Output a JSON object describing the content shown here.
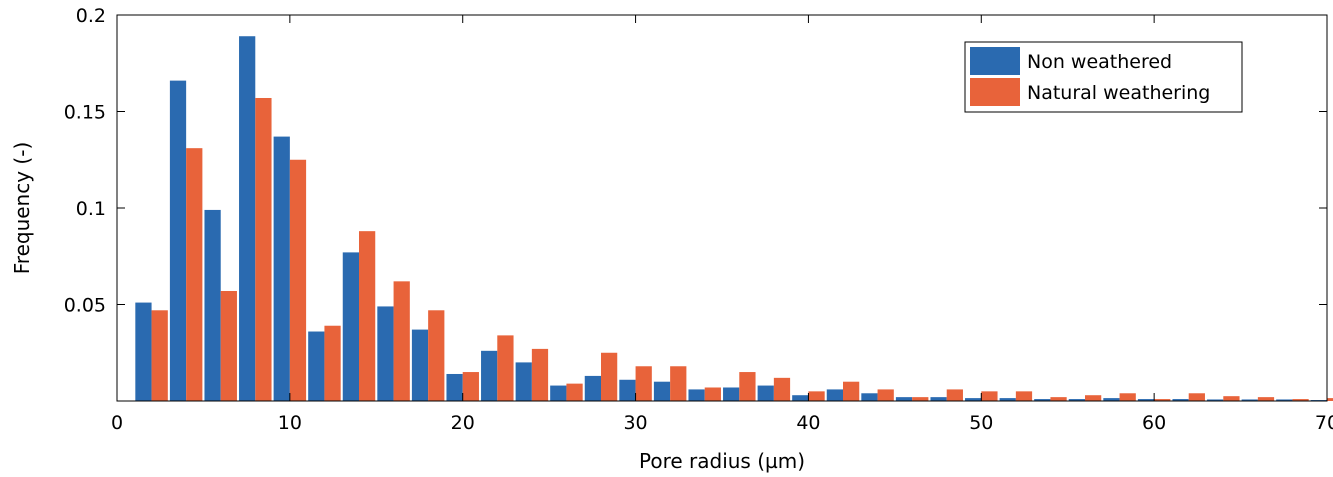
{
  "chart_data": {
    "type": "bar",
    "title": "",
    "xlabel": "Pore radius (µm)",
    "ylabel": "Frequency (-)",
    "xlim": [
      0,
      70
    ],
    "ylim": [
      0,
      0.2
    ],
    "xticks": [
      0,
      10,
      20,
      30,
      40,
      50,
      60,
      70
    ],
    "xtick_labels": [
      "0",
      "10",
      "20",
      "30",
      "40",
      "50",
      "60",
      "70"
    ],
    "yticks": [
      0.05,
      0.1,
      0.15,
      0.2
    ],
    "ytick_labels": [
      "0.05",
      "0.1",
      "0.15",
      "0.2"
    ],
    "grid": false,
    "legend_position": "top-right",
    "bin_centers": [
      2,
      4,
      6,
      8,
      10,
      12,
      14,
      16,
      18,
      20,
      22,
      24,
      26,
      28,
      30,
      32,
      34,
      36,
      38,
      40,
      42,
      44,
      46,
      48,
      50,
      52,
      54,
      56,
      58,
      60,
      62,
      64,
      66,
      68,
      70
    ],
    "series": [
      {
        "name": "Non weathered",
        "color": "#2a6ab0",
        "values": [
          0.051,
          0.166,
          0.099,
          0.189,
          0.137,
          0.036,
          0.077,
          0.049,
          0.037,
          0.014,
          0.026,
          0.02,
          0.008,
          0.013,
          0.011,
          0.01,
          0.006,
          0.007,
          0.008,
          0.003,
          0.006,
          0.004,
          0.002,
          0.002,
          0.0015,
          0.0015,
          0.001,
          0.001,
          0.0015,
          0.001,
          0.001,
          0.0008,
          0.0008,
          0.0008,
          0.0005
        ]
      },
      {
        "name": "Natural weathering",
        "color": "#e8633a",
        "values": [
          0.047,
          0.131,
          0.057,
          0.157,
          0.125,
          0.039,
          0.088,
          0.062,
          0.047,
          0.015,
          0.034,
          0.027,
          0.009,
          0.025,
          0.018,
          0.018,
          0.007,
          0.015,
          0.012,
          0.005,
          0.01,
          0.006,
          0.002,
          0.006,
          0.005,
          0.005,
          0.002,
          0.003,
          0.004,
          0.001,
          0.004,
          0.0025,
          0.002,
          0.001,
          0.0015
        ]
      }
    ]
  }
}
